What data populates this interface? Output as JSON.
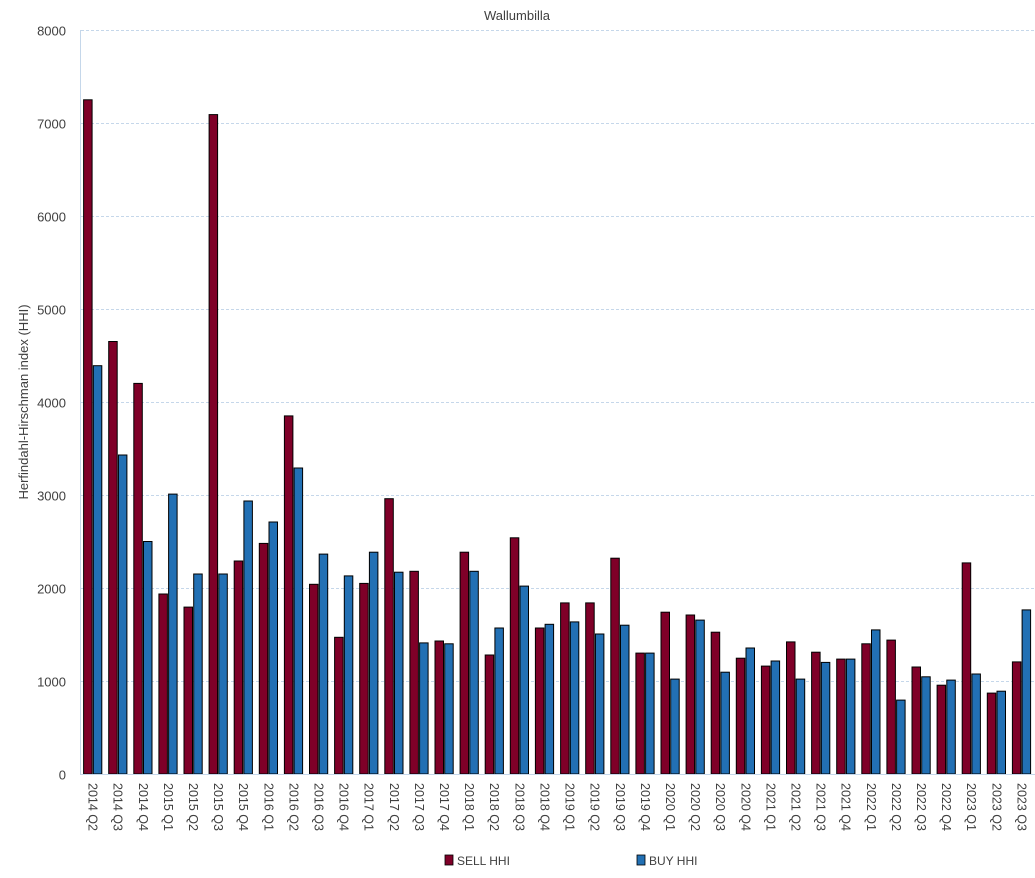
{
  "chart_data": {
    "type": "bar",
    "title": "Wallumbilla",
    "xlabel": "",
    "ylabel": "Herfindahl-Hirschman index (HHI)",
    "ylim": [
      0,
      8000
    ],
    "yticks": [
      0,
      1000,
      2000,
      3000,
      4000,
      5000,
      6000,
      7000,
      8000
    ],
    "grid": true,
    "legend_position": "bottom",
    "categories": [
      "2014 Q2",
      "2014 Q3",
      "2014 Q4",
      "2015 Q1",
      "2015 Q2",
      "2015 Q3",
      "2015 Q4",
      "2016 Q1",
      "2016 Q2",
      "2016 Q3",
      "2016 Q4",
      "2017 Q1",
      "2017 Q2",
      "2017 Q3",
      "2017 Q4",
      "2018 Q1",
      "2018 Q2",
      "2018 Q3",
      "2018 Q4",
      "2019 Q1",
      "2019 Q2",
      "2019 Q3",
      "2019 Q4",
      "2020 Q1",
      "2020 Q2",
      "2020 Q3",
      "2020 Q4",
      "2021 Q1",
      "2021 Q2",
      "2021 Q3",
      "2021 Q4",
      "2022 Q1",
      "2022 Q2",
      "2022 Q3",
      "2022 Q4",
      "2023 Q1",
      "2023 Q2",
      "2023 Q3"
    ],
    "series": [
      {
        "name": "SELL HHI",
        "color": "#7f0028",
        "values": [
          7250,
          4650,
          4200,
          1935,
          1795,
          7090,
          2290,
          2480,
          3850,
          2040,
          1470,
          2050,
          2960,
          2180,
          1430,
          2385,
          1280,
          2540,
          1570,
          1840,
          1840,
          2320,
          1300,
          1740,
          1710,
          1525,
          1245,
          1160,
          1420,
          1310,
          1235,
          1400,
          1440,
          1150,
          955,
          2270,
          870,
          1205
        ]
      },
      {
        "name": "BUY HHI",
        "color": "#2270b4",
        "values": [
          4390,
          3430,
          2500,
          3010,
          2150,
          2150,
          2935,
          2710,
          3290,
          2365,
          2130,
          2385,
          2170,
          1410,
          1400,
          2180,
          1570,
          2020,
          1610,
          1635,
          1505,
          1600,
          1300,
          1020,
          1655,
          1095,
          1355,
          1215,
          1020,
          1200,
          1235,
          1550,
          795,
          1045,
          1010,
          1075,
          890,
          1765
        ]
      }
    ]
  }
}
